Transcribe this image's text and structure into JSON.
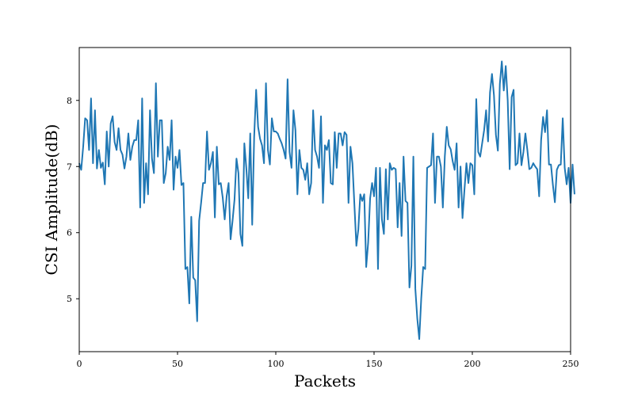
{
  "chart_data": {
    "type": "line",
    "title": "",
    "xlabel": "Packets",
    "ylabel": "CSI Amplitude(dB)",
    "xlim": [
      0,
      250
    ],
    "ylim": [
      4.2,
      8.8
    ],
    "xticks": [
      0,
      50,
      100,
      150,
      200,
      250
    ],
    "yticks": [
      5,
      6,
      7,
      8
    ],
    "grid": false,
    "legend": "none",
    "line_color": "#1f77b4",
    "series": [
      {
        "values": [
          7.05,
          6.95,
          7.3,
          7.73,
          7.7,
          7.25,
          8.03,
          7.05,
          7.85,
          6.97,
          7.25,
          6.98,
          7.06,
          6.73,
          7.53,
          7.0,
          7.65,
          7.76,
          7.37,
          7.25,
          7.58,
          7.25,
          7.18,
          6.97,
          7.15,
          7.5,
          7.1,
          7.3,
          7.4,
          7.4,
          7.7,
          6.38,
          8.03,
          6.45,
          7.05,
          6.58,
          7.85,
          7.12,
          6.9,
          8.26,
          7.15,
          7.7,
          7.7,
          6.75,
          6.9,
          7.3,
          7.1,
          7.7,
          6.65,
          7.15,
          6.98,
          7.25,
          6.72,
          6.75,
          5.45,
          5.48,
          4.93,
          6.24,
          5.32,
          5.28,
          4.66,
          6.18,
          6.45,
          6.75,
          6.75,
          7.53,
          6.95,
          7.05,
          7.22,
          6.23,
          7.3,
          6.73,
          6.75,
          6.53,
          6.2,
          6.55,
          6.75,
          5.9,
          6.18,
          6.5,
          7.12,
          6.9,
          5.98,
          5.8,
          7.35,
          6.98,
          6.52,
          7.5,
          6.12,
          7.45,
          8.16,
          7.6,
          7.42,
          7.32,
          7.05,
          8.26,
          7.25,
          7.03,
          7.73,
          7.53,
          7.53,
          7.5,
          7.42,
          7.35,
          7.25,
          7.12,
          8.32,
          7.22,
          6.98,
          7.85,
          7.55,
          6.58,
          7.25,
          6.98,
          6.95,
          6.8,
          7.05,
          6.58,
          6.75,
          7.85,
          7.25,
          7.15,
          6.98,
          7.76,
          6.45,
          7.32,
          7.25,
          7.4,
          6.75,
          6.73,
          7.52,
          6.98,
          7.5,
          7.5,
          7.32,
          7.52,
          7.48,
          6.45,
          7.3,
          7.05,
          6.42,
          5.8,
          6.05,
          6.58,
          6.48,
          6.58,
          5.48,
          5.85,
          6.52,
          6.75,
          6.55,
          6.98,
          5.45,
          6.98,
          6.2,
          5.98,
          6.96,
          6.2,
          7.05,
          6.95,
          6.98,
          6.96,
          6.08,
          6.75,
          5.95,
          7.15,
          6.48,
          6.45,
          5.17,
          5.5,
          7.15,
          5.15,
          4.7,
          4.39,
          5.0,
          5.48,
          5.45,
          6.98,
          7.0,
          7.02,
          7.5,
          6.45,
          7.15,
          7.15,
          7.0,
          6.38,
          7.15,
          7.6,
          7.32,
          7.26,
          7.08,
          6.95,
          7.35,
          6.38,
          7.0,
          6.22,
          6.65,
          7.05,
          6.75,
          7.05,
          7.02,
          6.58,
          8.02,
          7.22,
          7.15,
          7.35,
          7.55,
          7.85,
          7.38,
          8.12,
          8.4,
          8.08,
          7.48,
          7.24,
          8.25,
          8.59,
          8.15,
          8.52,
          8.0,
          6.96,
          8.05,
          8.16,
          7.02,
          7.05,
          7.5,
          7.02,
          7.22,
          7.5,
          7.25,
          6.96,
          6.98,
          7.05,
          7.0,
          6.96,
          6.55,
          7.4,
          7.75,
          7.52,
          7.85,
          7.03,
          7.03,
          6.72,
          6.46,
          6.95,
          7.02,
          7.03,
          7.73,
          6.98,
          6.73,
          6.98,
          6.45,
          7.03,
          6.58
        ]
      }
    ]
  }
}
